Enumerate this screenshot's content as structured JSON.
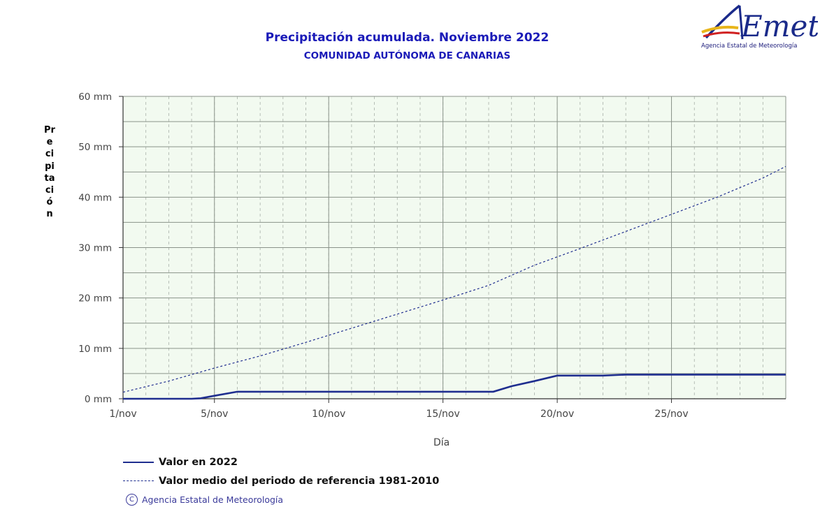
{
  "logo": {
    "text": "AEmet",
    "caption": "Agencia Estatal de Meteorología"
  },
  "copyright": {
    "symbol": "C",
    "text": "Agencia Estatal de Meteorología"
  },
  "colors": {
    "title": "#1a1ab8",
    "series": "#1f2e8f",
    "plot_bg": "#f2faf0",
    "grid": "#9aa39a"
  },
  "chart_data": {
    "type": "line",
    "title": "Precipitación acumulada. Noviembre 2022",
    "subtitle": "COMUNIDAD AUTÓNOMA DE CANARIAS",
    "xlabel": "Día",
    "ylabel": "Precipitación",
    "xlim": [
      1,
      30
    ],
    "ylim": [
      0,
      60
    ],
    "x_ticks": [
      1,
      5,
      10,
      15,
      20,
      25
    ],
    "x_tick_labels": [
      "1/nov",
      "5/nov",
      "10/nov",
      "15/nov",
      "20/nov",
      "25/nov"
    ],
    "y_ticks": [
      0,
      10,
      20,
      30,
      40,
      50,
      60
    ],
    "y_tick_labels": [
      "0 mm",
      "10 mm",
      "20 mm",
      "30 mm",
      "40 mm",
      "50 mm",
      "60 mm"
    ],
    "grid": true,
    "legend_position": "bottom-left",
    "series": [
      {
        "name": "Valor en 2022",
        "style": "solid",
        "x": [
          1,
          4,
          4.4,
          5,
          6,
          7,
          8,
          9,
          10,
          11,
          12,
          13,
          14,
          15,
          16,
          17,
          17.2,
          18,
          19,
          20,
          21,
          22,
          23,
          24,
          25,
          26,
          27,
          28,
          29,
          30
        ],
        "y": [
          0,
          0,
          0.1,
          0.6,
          1.4,
          1.4,
          1.4,
          1.4,
          1.4,
          1.4,
          1.4,
          1.4,
          1.4,
          1.4,
          1.4,
          1.4,
          1.4,
          2.5,
          3.5,
          4.6,
          4.6,
          4.6,
          4.8,
          4.8,
          4.8,
          4.8,
          4.8,
          4.8,
          4.8,
          4.8
        ]
      },
      {
        "name": "Valor medio del periodo de referencia 1981-2010",
        "style": "dashed",
        "x": [
          1,
          3,
          5,
          7,
          9,
          11,
          13,
          15,
          17,
          19,
          21,
          23,
          25,
          27,
          29,
          30
        ],
        "y": [
          1.3,
          3.5,
          6.1,
          8.5,
          11.2,
          14.0,
          16.8,
          19.6,
          22.5,
          26.5,
          29.8,
          33.2,
          36.6,
          40.0,
          43.8,
          46.1
        ]
      }
    ]
  }
}
